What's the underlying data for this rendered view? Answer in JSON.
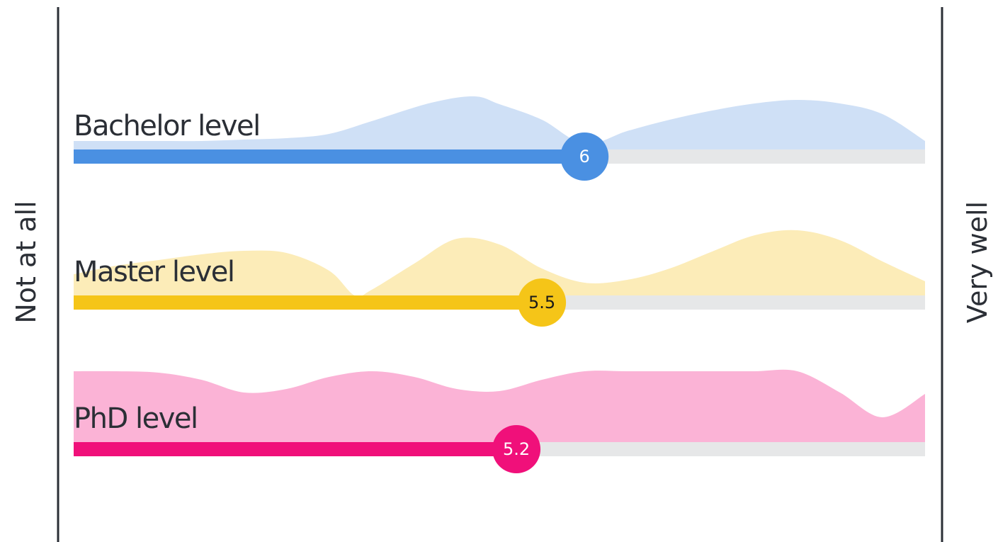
{
  "chart_data": {
    "type": "area",
    "scale": {
      "min": 0,
      "max": 10
    },
    "left_label": "Not at all",
    "right_label": "Very well",
    "rows": [
      {
        "label": "Bachelor level",
        "value": 6,
        "value_label": "6",
        "fill_color": "#cfe0f6",
        "bar_color": "#4a90e2",
        "knob_text_color": "#ffffff",
        "distribution": [
          [
            0,
            12
          ],
          [
            0.5,
            12
          ],
          [
            1,
            12
          ],
          [
            1.5,
            12
          ],
          [
            2,
            14
          ],
          [
            2.5,
            16
          ],
          [
            3,
            22
          ],
          [
            3.5,
            40
          ],
          [
            4.2,
            66
          ],
          [
            4.7,
            75
          ],
          [
            5,
            64
          ],
          [
            5.5,
            42
          ],
          [
            6,
            8
          ],
          [
            6.5,
            26
          ],
          [
            7,
            42
          ],
          [
            7.5,
            55
          ],
          [
            8,
            65
          ],
          [
            8.5,
            70
          ],
          [
            9,
            65
          ],
          [
            9.5,
            50
          ],
          [
            10,
            12
          ]
        ]
      },
      {
        "label": "Master level",
        "value": 5.5,
        "value_label": "5.5",
        "fill_color": "#fcecb8",
        "bar_color": "#f5c518",
        "knob_text_color": "#1a1a1a",
        "distribution": [
          [
            0,
            30
          ],
          [
            0.5,
            42
          ],
          [
            1,
            50
          ],
          [
            1.5,
            58
          ],
          [
            2,
            63
          ],
          [
            2.5,
            60
          ],
          [
            3,
            35
          ],
          [
            3.3,
            0
          ],
          [
            3.5,
            8
          ],
          [
            4,
            45
          ],
          [
            4.5,
            80
          ],
          [
            5,
            72
          ],
          [
            5.5,
            38
          ],
          [
            6,
            18
          ],
          [
            6.5,
            22
          ],
          [
            7,
            38
          ],
          [
            7.5,
            62
          ],
          [
            8,
            85
          ],
          [
            8.5,
            92
          ],
          [
            9,
            78
          ],
          [
            9.5,
            48
          ],
          [
            10,
            20
          ]
        ]
      },
      {
        "label": "PhD level",
        "value": 5.2,
        "value_label": "5.2",
        "fill_color": "#fbb3d6",
        "bar_color": "#f0107a",
        "knob_text_color": "#ffffff",
        "distribution": [
          [
            0,
            100
          ],
          [
            0.5,
            100
          ],
          [
            1,
            98
          ],
          [
            1.5,
            88
          ],
          [
            2,
            70
          ],
          [
            2.5,
            75
          ],
          [
            3,
            92
          ],
          [
            3.5,
            100
          ],
          [
            4,
            92
          ],
          [
            4.5,
            75
          ],
          [
            5,
            72
          ],
          [
            5.5,
            88
          ],
          [
            6,
            100
          ],
          [
            6.5,
            100
          ],
          [
            7,
            100
          ],
          [
            7.5,
            100
          ],
          [
            8,
            100
          ],
          [
            8.5,
            100
          ],
          [
            9,
            70
          ],
          [
            9.5,
            35
          ],
          [
            10,
            68
          ]
        ]
      }
    ]
  }
}
